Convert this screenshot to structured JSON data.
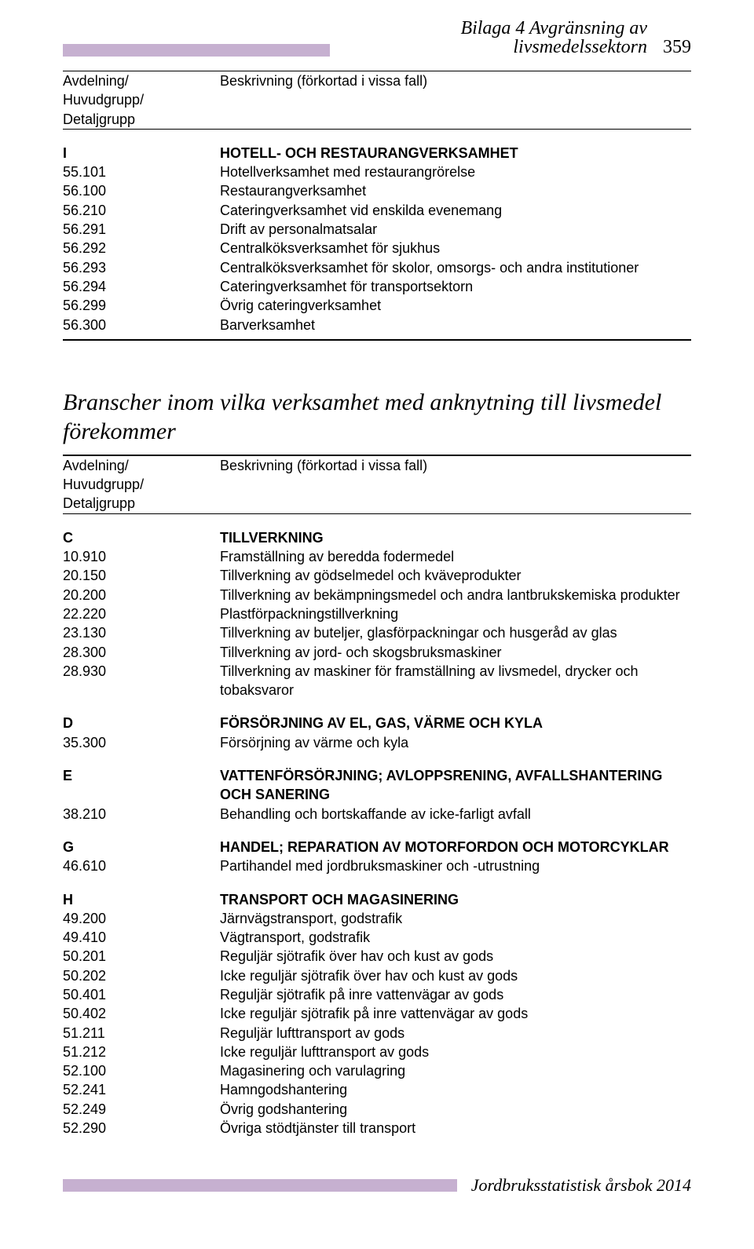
{
  "page": {
    "header_title": "Bilaga 4   Avgränsning av livsmedelssektorn",
    "page_number": "359",
    "header_bar_color": "#c6b0d0",
    "footer_bar_color": "#c6b0d0",
    "footer_text": "Jordbruksstatistisk årsbok 2014"
  },
  "table1": {
    "label_col1_l1": "Avdelning/",
    "label_col1_l2": "Huvudgrupp/",
    "label_col1_l3": "Detaljgrupp",
    "label_col2": "Beskrivning (förkortad i vissa fall)",
    "groups": [
      {
        "heading_code": "I",
        "heading_text": "HOTELL- OCH RESTAURANGVERKSAMHET",
        "rows": [
          {
            "code": "55.101",
            "desc": "Hotellverksamhet med restaurangrörelse"
          },
          {
            "code": "56.100",
            "desc": "Restaurangverksamhet"
          },
          {
            "code": "56.210",
            "desc": "Cateringverksamhet vid enskilda evenemang"
          },
          {
            "code": "56.291",
            "desc": "Drift av personalmatsalar"
          },
          {
            "code": "56.292",
            "desc": "Centralköksverksamhet för sjukhus"
          },
          {
            "code": "56.293",
            "desc": "Centralköksverksamhet för skolor, omsorgs- och andra institutioner"
          },
          {
            "code": "56.294",
            "desc": "Cateringverksamhet för transportsektorn"
          },
          {
            "code": "56.299",
            "desc": "Övrig cateringverksamhet"
          },
          {
            "code": "56.300",
            "desc": "Barverksamhet"
          }
        ]
      }
    ]
  },
  "subtitle": "Branscher inom vilka verksamhet med anknytning till livsmedel förekommer",
  "table2": {
    "label_col1_l1": "Avdelning/",
    "label_col1_l2": "Huvudgrupp/",
    "label_col1_l3": "Detaljgrupp",
    "label_col2": "Beskrivning (förkortad i vissa fall)",
    "groups": [
      {
        "heading_code": "C",
        "heading_text": "TILLVERKNING",
        "rows": [
          {
            "code": "10.910",
            "desc": "Framställning av beredda fodermedel"
          },
          {
            "code": "20.150",
            "desc": "Tillverkning av gödselmedel och kväveprodukter"
          },
          {
            "code": "20.200",
            "desc": "Tillverkning av bekämpningsmedel och andra lantbrukskemiska produkter"
          },
          {
            "code": "22.220",
            "desc": "Plastförpackningstillverkning"
          },
          {
            "code": "23.130",
            "desc": "Tillverkning av buteljer, glasförpackningar och husgeråd av glas"
          },
          {
            "code": "28.300",
            "desc": "Tillverkning av jord- och skogsbruksmaskiner"
          },
          {
            "code": "28.930",
            "desc": "Tillverkning av maskiner för framställning av livsmedel, drycker och tobaksvaror"
          }
        ]
      },
      {
        "heading_code": "D",
        "heading_text": "FÖRSÖRJNING AV EL, GAS, VÄRME OCH KYLA",
        "rows": [
          {
            "code": "35.300",
            "desc": "Försörjning av värme och kyla"
          }
        ]
      },
      {
        "heading_code": "E",
        "heading_text": "VATTENFÖRSÖRJNING; AVLOPPSRENING, AVFALLSHANTERING OCH SANERING",
        "rows": [
          {
            "code": "38.210",
            "desc": "Behandling och bortskaffande av icke-farligt avfall"
          }
        ]
      },
      {
        "heading_code": "G",
        "heading_text": "HANDEL; REPARATION AV MOTORFORDON OCH MOTORCYKLAR",
        "rows": [
          {
            "code": "46.610",
            "desc": "Partihandel med jordbruksmaskiner och -utrustning"
          }
        ]
      },
      {
        "heading_code": "H",
        "heading_text": "TRANSPORT OCH MAGASINERING",
        "rows": [
          {
            "code": "49.200",
            "desc": "Järnvägstransport, godstrafik"
          },
          {
            "code": "49.410",
            "desc": "Vägtransport, godstrafik"
          },
          {
            "code": "50.201",
            "desc": "Reguljär sjötrafik över hav och kust av gods"
          },
          {
            "code": "50.202",
            "desc": "Icke reguljär sjötrafik över hav och kust av gods"
          },
          {
            "code": "50.401",
            "desc": "Reguljär sjötrafik på inre vattenvägar av gods"
          },
          {
            "code": "50.402",
            "desc": "Icke reguljär sjötrafik på inre vattenvägar av gods"
          },
          {
            "code": "51.211",
            "desc": "Reguljär lufttransport av gods"
          },
          {
            "code": "51.212",
            "desc": "Icke reguljär lufttransport av gods"
          },
          {
            "code": "52.100",
            "desc": "Magasinering och varulagring"
          },
          {
            "code": "52.241",
            "desc": "Hamngodshantering"
          },
          {
            "code": "52.249",
            "desc": "Övrig godshantering"
          },
          {
            "code": "52.290",
            "desc": "Övriga stödtjänster till transport"
          }
        ]
      }
    ]
  }
}
